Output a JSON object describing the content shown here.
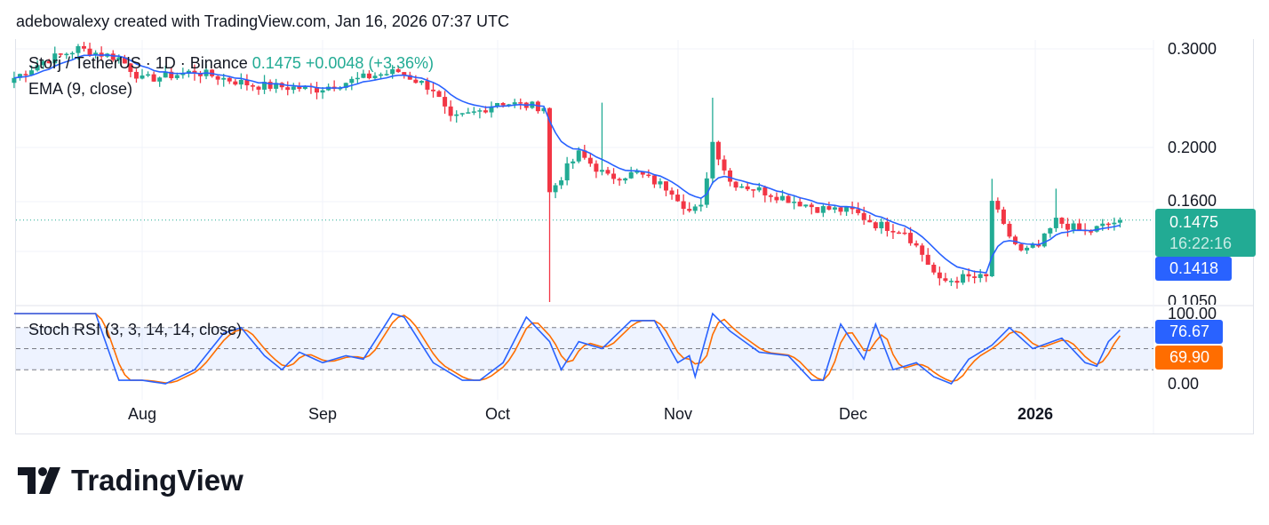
{
  "header": {
    "attribution": "adebowalexy created with TradingView.com, Jan 16, 2026 07:37 UTC"
  },
  "legend": {
    "symbol": "Storj / TetherUS · 1D · Binance",
    "last": "0.1475",
    "change": "+0.0048 (+3.36%)",
    "ema": "EMA (9, close)",
    "stoch": "Stoch RSI (3, 3, 14, 14, close)"
  },
  "price_axis": {
    "ticks": [
      "0.3000",
      "0.2000",
      "0.1600",
      "0.1050"
    ],
    "last_price": "0.1475",
    "countdown": "16:22:16",
    "ema_value": "0.1418"
  },
  "stoch_axis": {
    "ticks": [
      "100.00",
      "0.00"
    ],
    "k_value": "76.67",
    "d_value": "69.90"
  },
  "time_axis": {
    "labels": [
      "Aug",
      "Sep",
      "Oct",
      "Nov",
      "Dec",
      "2026"
    ]
  },
  "logo": {
    "text": "TradingView"
  },
  "colors": {
    "up": "#22ab94",
    "down": "#f23645",
    "ema": "#2962ff",
    "stoch_k": "#2962ff",
    "stoch_d": "#ff6d00"
  },
  "chart_data": {
    "type": "candlestick",
    "scale": "log",
    "ylim": [
      0.1,
      0.31
    ],
    "grid": true,
    "price_points": [
      [
        "2025-07-10",
        0.266
      ],
      [
        "2025-07-15",
        0.285
      ],
      [
        "2025-07-21",
        0.3
      ],
      [
        "2025-07-28",
        0.289
      ],
      [
        "2025-08-01",
        0.264
      ],
      [
        "2025-08-10",
        0.273
      ],
      [
        "2025-08-20",
        0.258
      ],
      [
        "2025-08-31",
        0.254
      ],
      [
        "2025-09-10",
        0.269
      ],
      [
        "2025-09-14",
        0.273
      ],
      [
        "2025-09-20",
        0.254
      ],
      [
        "2025-09-23",
        0.223
      ],
      [
        "2025-09-28",
        0.232
      ],
      [
        "2025-10-01",
        0.241
      ],
      [
        "2025-10-06",
        0.237
      ],
      [
        "2025-10-09",
        0.236
      ],
      [
        "2025-10-10",
        0.165
      ],
      [
        "2025-10-13",
        0.183
      ],
      [
        "2025-10-15",
        0.194
      ],
      [
        "2025-10-20",
        0.176
      ],
      [
        "2025-10-25",
        0.179
      ],
      [
        "2025-10-31",
        0.167
      ],
      [
        "2025-11-03",
        0.153
      ],
      [
        "2025-11-05",
        0.155
      ],
      [
        "2025-11-07",
        0.204
      ],
      [
        "2025-11-10",
        0.173
      ],
      [
        "2025-11-15",
        0.167
      ],
      [
        "2025-11-20",
        0.161
      ],
      [
        "2025-11-25",
        0.155
      ],
      [
        "2025-12-01",
        0.153
      ],
      [
        "2025-12-05",
        0.145
      ],
      [
        "2025-12-10",
        0.141
      ],
      [
        "2025-12-13",
        0.128
      ],
      [
        "2025-12-16",
        0.114
      ],
      [
        "2025-12-20",
        0.116
      ],
      [
        "2025-12-24",
        0.116
      ],
      [
        "2025-12-25",
        0.16
      ],
      [
        "2025-12-27",
        0.143
      ],
      [
        "2025-12-30",
        0.129
      ],
      [
        "2026-01-02",
        0.132
      ],
      [
        "2026-01-05",
        0.147
      ],
      [
        "2026-01-10",
        0.14
      ],
      [
        "2026-01-16",
        0.1475
      ]
    ],
    "wick_extremes": [
      [
        "2025-10-10",
        0.105
      ],
      [
        "2025-11-07",
        0.245
      ],
      [
        "2025-10-19",
        0.24
      ],
      [
        "2025-12-25",
        0.175
      ],
      [
        "2026-01-05",
        0.168
      ]
    ],
    "stoch_k_points": [
      [
        "2025-07-10",
        100
      ],
      [
        "2025-07-24",
        100
      ],
      [
        "2025-07-28",
        5
      ],
      [
        "2025-08-01",
        5
      ],
      [
        "2025-08-05",
        0
      ],
      [
        "2025-08-10",
        20
      ],
      [
        "2025-08-15",
        72
      ],
      [
        "2025-08-18",
        80
      ],
      [
        "2025-08-22",
        40
      ],
      [
        "2025-08-25",
        20
      ],
      [
        "2025-08-28",
        45
      ],
      [
        "2025-09-01",
        30
      ],
      [
        "2025-09-05",
        40
      ],
      [
        "2025-09-08",
        35
      ],
      [
        "2025-09-13",
        100
      ],
      [
        "2025-09-15",
        95
      ],
      [
        "2025-09-20",
        30
      ],
      [
        "2025-09-25",
        5
      ],
      [
        "2025-09-28",
        5
      ],
      [
        "2025-10-02",
        30
      ],
      [
        "2025-10-06",
        95
      ],
      [
        "2025-10-10",
        60
      ],
      [
        "2025-10-12",
        20
      ],
      [
        "2025-10-15",
        60
      ],
      [
        "2025-10-19",
        50
      ],
      [
        "2025-10-24",
        90
      ],
      [
        "2025-10-28",
        90
      ],
      [
        "2025-11-01",
        30
      ],
      [
        "2025-11-03",
        40
      ],
      [
        "2025-11-04",
        10
      ],
      [
        "2025-11-07",
        100
      ],
      [
        "2025-11-10",
        75
      ],
      [
        "2025-11-15",
        45
      ],
      [
        "2025-11-20",
        40
      ],
      [
        "2025-11-24",
        5
      ],
      [
        "2025-11-26",
        5
      ],
      [
        "2025-11-29",
        85
      ],
      [
        "2025-12-03",
        35
      ],
      [
        "2025-12-05",
        85
      ],
      [
        "2025-12-08",
        20
      ],
      [
        "2025-12-12",
        30
      ],
      [
        "2025-12-15",
        10
      ],
      [
        "2025-12-18",
        0
      ],
      [
        "2025-12-21",
        35
      ],
      [
        "2025-12-25",
        55
      ],
      [
        "2025-12-28",
        80
      ],
      [
        "2026-01-01",
        50
      ],
      [
        "2026-01-06",
        65
      ],
      [
        "2026-01-10",
        30
      ],
      [
        "2026-01-12",
        25
      ],
      [
        "2026-01-14",
        60
      ],
      [
        "2026-01-16",
        76.67
      ]
    ],
    "stoch_bands": [
      80,
      50,
      20
    ],
    "stoch_ylim": [
      0,
      100
    ]
  }
}
